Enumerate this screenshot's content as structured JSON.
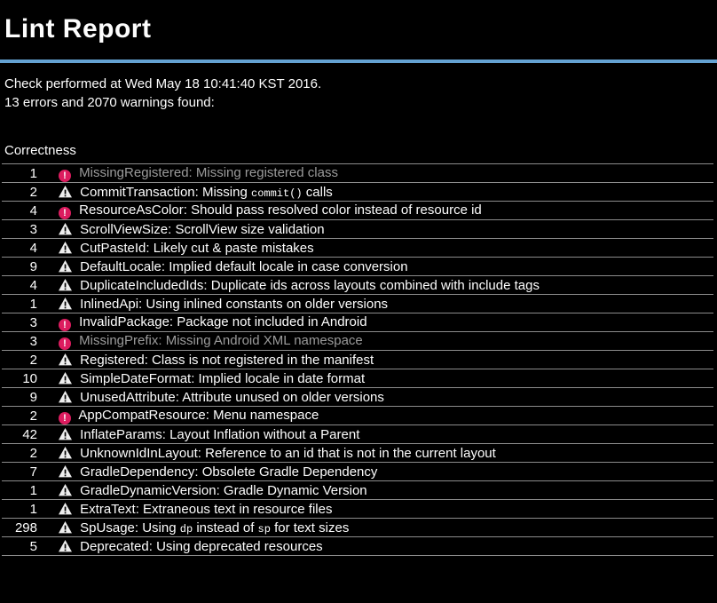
{
  "page": {
    "title": "Lint Report"
  },
  "header": {
    "check_line": "Check performed at Wed May 18 10:41:40 KST 2016.",
    "summary_line": "13 errors and 2070 warnings found:"
  },
  "colors": {
    "background": "#000000",
    "text": "#fdfdfd",
    "dim_text": "#9b9b9b",
    "accent_rule_blue": "#64a2d2",
    "error_icon_pink": "#dc1c5f",
    "warning_icon_white": "#eeeeee",
    "row_divider_gray": "#8c8c8c"
  },
  "section": {
    "title": "Correctness"
  },
  "issues": [
    {
      "count": "1",
      "severity": "error",
      "dim": true,
      "id": "MissingRegistered",
      "desc": [
        {
          "text": "Missing registered class"
        }
      ]
    },
    {
      "count": "2",
      "severity": "warning",
      "dim": false,
      "id": "CommitTransaction",
      "desc": [
        {
          "text": "Missing "
        },
        {
          "text": "commit()",
          "code": true
        },
        {
          "text": " calls"
        }
      ]
    },
    {
      "count": "4",
      "severity": "error",
      "dim": false,
      "id": "ResourceAsColor",
      "desc": [
        {
          "text": "Should pass resolved color instead of resource id"
        }
      ]
    },
    {
      "count": "3",
      "severity": "warning",
      "dim": false,
      "id": "ScrollViewSize",
      "desc": [
        {
          "text": "ScrollView size validation"
        }
      ]
    },
    {
      "count": "4",
      "severity": "warning",
      "dim": false,
      "id": "CutPasteId",
      "desc": [
        {
          "text": "Likely cut & paste mistakes"
        }
      ]
    },
    {
      "count": "9",
      "severity": "warning",
      "dim": false,
      "id": "DefaultLocale",
      "desc": [
        {
          "text": "Implied default locale in case conversion"
        }
      ]
    },
    {
      "count": "4",
      "severity": "warning",
      "dim": false,
      "id": "DuplicateIncludedIds",
      "desc": [
        {
          "text": "Duplicate ids across layouts combined with include tags"
        }
      ]
    },
    {
      "count": "1",
      "severity": "warning",
      "dim": false,
      "id": "InlinedApi",
      "desc": [
        {
          "text": "Using inlined constants on older versions"
        }
      ]
    },
    {
      "count": "3",
      "severity": "error",
      "dim": false,
      "id": "InvalidPackage",
      "desc": [
        {
          "text": "Package not included in Android"
        }
      ]
    },
    {
      "count": "3",
      "severity": "error",
      "dim": true,
      "id": "MissingPrefix",
      "desc": [
        {
          "text": "Missing Android XML namespace"
        }
      ]
    },
    {
      "count": "2",
      "severity": "warning",
      "dim": false,
      "id": "Registered",
      "desc": [
        {
          "text": "Class is not registered in the manifest"
        }
      ]
    },
    {
      "count": "10",
      "severity": "warning",
      "dim": false,
      "id": "SimpleDateFormat",
      "desc": [
        {
          "text": "Implied locale in date format"
        }
      ]
    },
    {
      "count": "9",
      "severity": "warning",
      "dim": false,
      "id": "UnusedAttribute",
      "desc": [
        {
          "text": "Attribute unused on older versions"
        }
      ]
    },
    {
      "count": "2",
      "severity": "error",
      "dim": false,
      "id": "AppCompatResource",
      "desc": [
        {
          "text": "Menu namespace"
        }
      ]
    },
    {
      "count": "42",
      "severity": "warning",
      "dim": false,
      "id": "InflateParams",
      "desc": [
        {
          "text": "Layout Inflation without a Parent"
        }
      ]
    },
    {
      "count": "2",
      "severity": "warning",
      "dim": false,
      "id": "UnknownIdInLayout",
      "desc": [
        {
          "text": "Reference to an id that is not in the current layout"
        }
      ]
    },
    {
      "count": "7",
      "severity": "warning",
      "dim": false,
      "id": "GradleDependency",
      "desc": [
        {
          "text": "Obsolete Gradle Dependency"
        }
      ]
    },
    {
      "count": "1",
      "severity": "warning",
      "dim": false,
      "id": "GradleDynamicVersion",
      "desc": [
        {
          "text": "Gradle Dynamic Version"
        }
      ]
    },
    {
      "count": "1",
      "severity": "warning",
      "dim": false,
      "id": "ExtraText",
      "desc": [
        {
          "text": "Extraneous text in resource files"
        }
      ]
    },
    {
      "count": "298",
      "severity": "warning",
      "dim": false,
      "id": "SpUsage",
      "desc": [
        {
          "text": "Using "
        },
        {
          "text": "dp",
          "code": true
        },
        {
          "text": " instead of "
        },
        {
          "text": "sp",
          "code": true
        },
        {
          "text": " for text sizes"
        }
      ]
    },
    {
      "count": "5",
      "severity": "warning",
      "dim": false,
      "id": "Deprecated",
      "desc": [
        {
          "text": "Using deprecated resources"
        }
      ]
    }
  ]
}
